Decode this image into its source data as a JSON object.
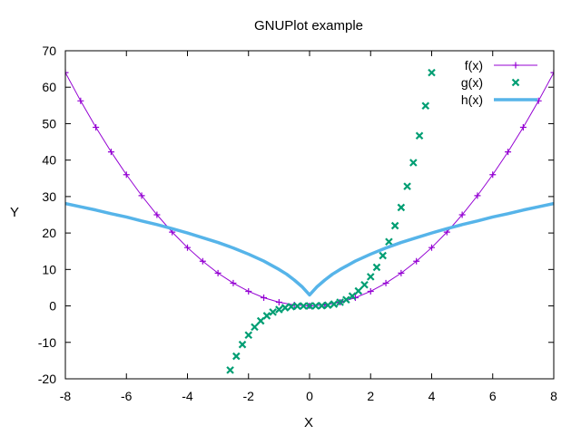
{
  "chart_data": {
    "type": "line",
    "title": "GNUPlot example",
    "xlabel": "X",
    "ylabel": "Y",
    "xlim": [
      -8,
      8
    ],
    "ylim": [
      -20,
      70
    ],
    "xticks": [
      -8,
      -6,
      -4,
      -2,
      0,
      2,
      4,
      6,
      8
    ],
    "yticks": [
      -20,
      -10,
      0,
      10,
      20,
      30,
      40,
      50,
      60,
      70
    ],
    "grid": false,
    "legend_position": "top-right",
    "series": [
      {
        "name": "f(x)",
        "style": "linespoints-plus",
        "color": "#9400d3",
        "x": [
          -8,
          -7.5,
          -7,
          -6.5,
          -6,
          -5.5,
          -5,
          -4.5,
          -4,
          -3.5,
          -3,
          -2.5,
          -2,
          -1.5,
          -1,
          -0.5,
          0,
          0.5,
          1,
          1.5,
          2,
          2.5,
          3,
          3.5,
          4,
          4.5,
          5,
          5.5,
          6,
          6.5,
          7,
          7.5,
          8
        ],
        "y": [
          64,
          56.25,
          49,
          42.25,
          36,
          30.25,
          25,
          20.25,
          16,
          12.25,
          9,
          6.25,
          4,
          2.25,
          1,
          0.25,
          0,
          0.25,
          1,
          2.25,
          4,
          6.25,
          9,
          12.25,
          16,
          20.25,
          25,
          30.25,
          36,
          42.25,
          49,
          56.25,
          64
        ]
      },
      {
        "name": "g(x)",
        "style": "points-x",
        "color": "#009e73",
        "x": [
          -2.6,
          -2.4,
          -2.2,
          -2.0,
          -1.8,
          -1.6,
          -1.4,
          -1.2,
          -1.0,
          -0.8,
          -0.6,
          -0.4,
          -0.2,
          0,
          0.2,
          0.4,
          0.6,
          0.8,
          1.0,
          1.2,
          1.4,
          1.6,
          1.8,
          2.0,
          2.2,
          2.4,
          2.6,
          2.8,
          3.0,
          3.2,
          3.4,
          3.6,
          3.8,
          4.0
        ],
        "y": [
          -17.6,
          -13.8,
          -10.6,
          -8.0,
          -5.8,
          -4.1,
          -2.7,
          -1.7,
          -1.0,
          -0.5,
          -0.2,
          -0.06,
          -0.01,
          0,
          0.01,
          0.06,
          0.2,
          0.5,
          1.0,
          1.7,
          2.7,
          4.1,
          5.8,
          8.0,
          10.6,
          13.8,
          17.6,
          22.0,
          27.0,
          32.8,
          39.3,
          46.7,
          54.9,
          64.0
        ]
      },
      {
        "name": "h(x)",
        "style": "line",
        "color": "#56b4e9",
        "x": [
          -8,
          -7.5,
          -7,
          -6.5,
          -6,
          -5.5,
          -5,
          -4.5,
          -4,
          -3.5,
          -3,
          -2.5,
          -2,
          -1.5,
          -1,
          -0.75,
          -0.5,
          -0.25,
          0,
          0.25,
          0.5,
          0.75,
          1,
          1.5,
          2,
          2.5,
          3,
          3.5,
          4,
          4.5,
          5,
          5.5,
          6,
          6.5,
          7,
          7.5,
          8
        ],
        "y": [
          28.1,
          27.2,
          26.3,
          25.3,
          24.4,
          23.3,
          22.3,
          21.2,
          20.0,
          18.7,
          17.4,
          15.9,
          14.2,
          12.3,
          10.0,
          8.7,
          7.1,
          5.3,
          3.0,
          5.3,
          7.1,
          8.7,
          10.0,
          12.3,
          14.2,
          15.9,
          17.4,
          18.7,
          20.0,
          21.2,
          22.3,
          23.3,
          24.4,
          25.3,
          26.3,
          27.2,
          28.1
        ]
      }
    ]
  }
}
